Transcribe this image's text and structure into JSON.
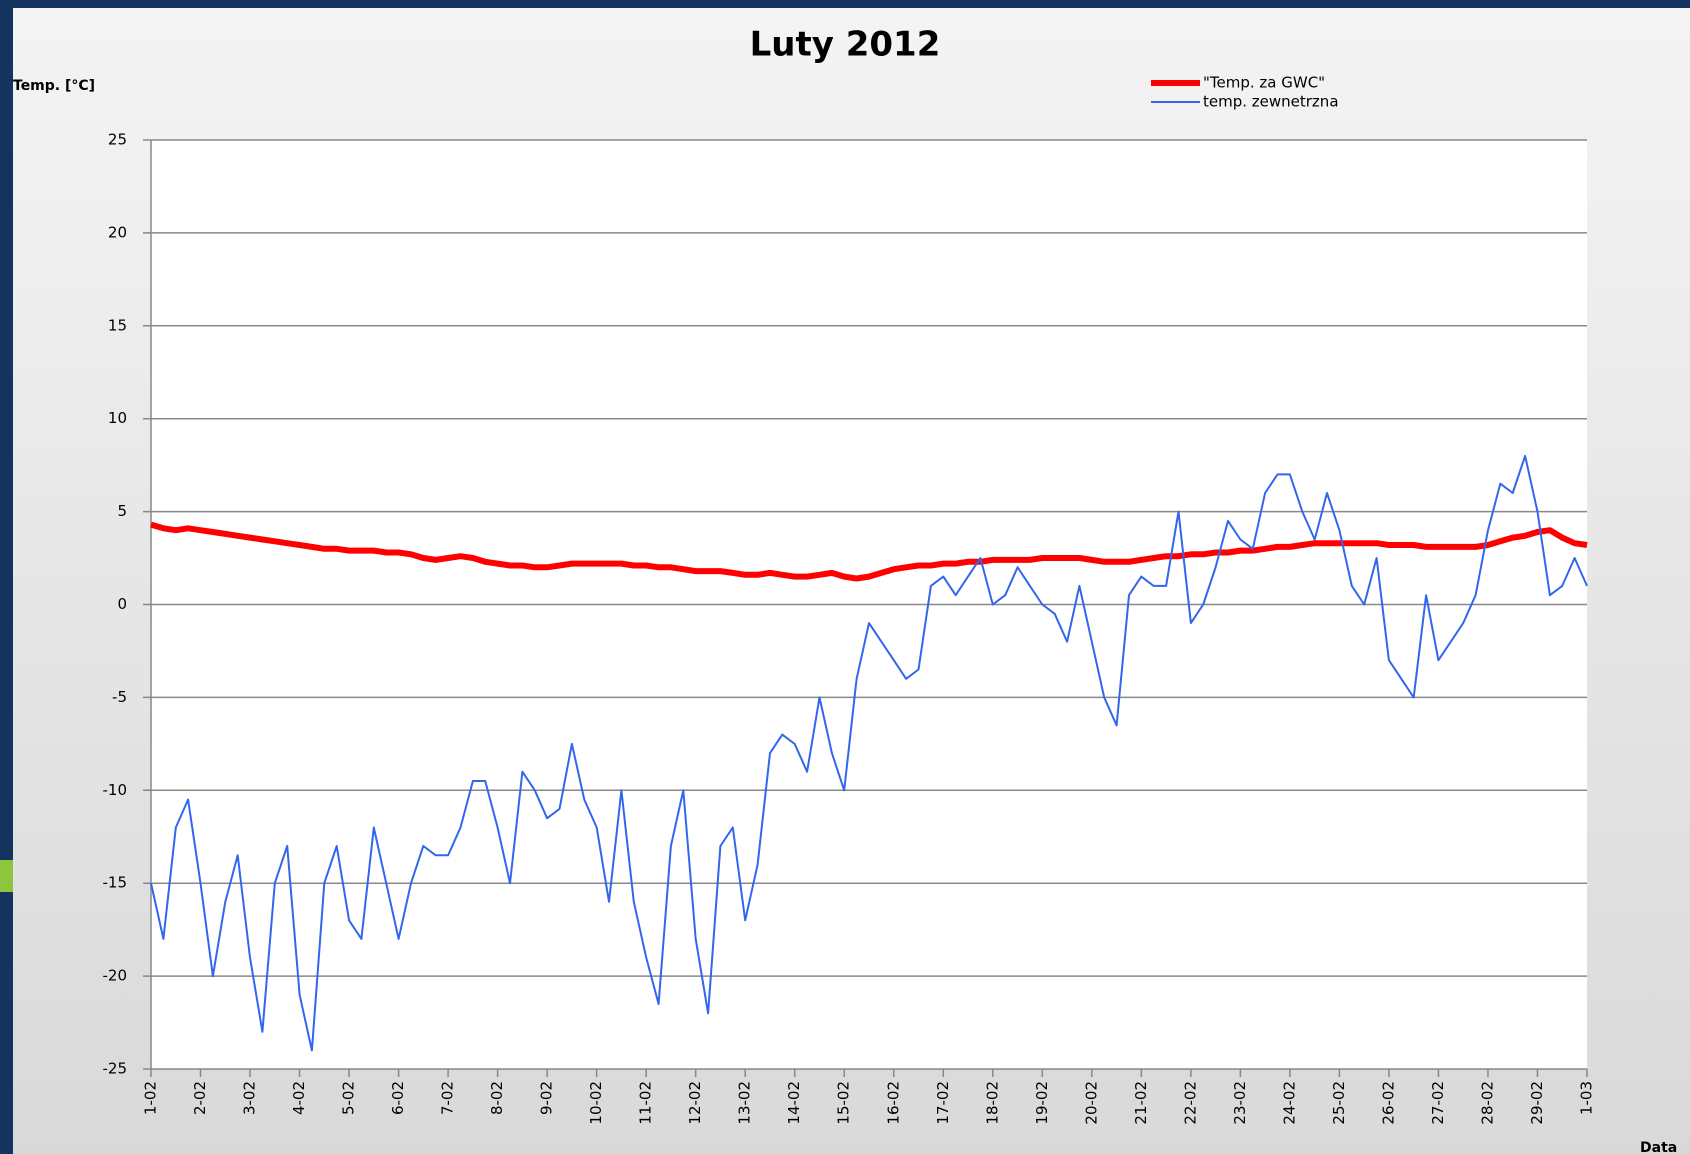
{
  "chart_data": {
    "type": "line",
    "title": "Luty 2012",
    "y_label": "Temp. [°C]",
    "x_label": "Data",
    "categories": [
      "1-02",
      null,
      null,
      null,
      "2-02",
      null,
      null,
      null,
      "3-02",
      null,
      null,
      null,
      "4-02",
      null,
      null,
      null,
      "5-02",
      null,
      null,
      null,
      "6-02",
      null,
      null,
      null,
      "7-02",
      null,
      null,
      null,
      "8-02",
      null,
      null,
      null,
      "9-02",
      null,
      null,
      null,
      "10-02",
      null,
      null,
      null,
      "11-02",
      null,
      null,
      null,
      "12-02",
      null,
      null,
      null,
      "13-02",
      null,
      null,
      null,
      "14-02",
      null,
      null,
      null,
      "15-02",
      null,
      null,
      null,
      "16-02",
      null,
      null,
      null,
      "17-02",
      null,
      null,
      null,
      "18-02",
      null,
      null,
      null,
      "19-02",
      null,
      null,
      null,
      "20-02",
      null,
      null,
      null,
      "21-02",
      null,
      null,
      null,
      "22-02",
      null,
      null,
      null,
      "23-02",
      null,
      null,
      null,
      "24-02",
      null,
      null,
      null,
      "25-02",
      null,
      null,
      null,
      "26-02",
      null,
      null,
      null,
      "27-02",
      null,
      null,
      null,
      "28-02",
      null,
      null,
      null,
      "29-02",
      null,
      null,
      null,
      "1-03"
    ],
    "series": [
      {
        "name": "\"Temp. za GWC\"",
        "color": "#ff0000",
        "width": 6,
        "values": [
          4.3,
          4.1,
          4.0,
          4.1,
          4.0,
          3.9,
          3.8,
          3.7,
          3.6,
          3.5,
          3.4,
          3.3,
          3.2,
          3.1,
          3.0,
          3.0,
          2.9,
          2.9,
          2.9,
          2.8,
          2.8,
          2.7,
          2.5,
          2.4,
          2.5,
          2.6,
          2.5,
          2.3,
          2.2,
          2.1,
          2.1,
          2.0,
          2.0,
          2.1,
          2.2,
          2.2,
          2.2,
          2.2,
          2.2,
          2.1,
          2.1,
          2.0,
          2.0,
          1.9,
          1.8,
          1.8,
          1.8,
          1.7,
          1.6,
          1.6,
          1.7,
          1.6,
          1.5,
          1.5,
          1.6,
          1.7,
          1.5,
          1.4,
          1.5,
          1.7,
          1.9,
          2.0,
          2.1,
          2.1,
          2.2,
          2.2,
          2.3,
          2.3,
          2.4,
          2.4,
          2.4,
          2.4,
          2.5,
          2.5,
          2.5,
          2.5,
          2.4,
          2.3,
          2.3,
          2.3,
          2.4,
          2.5,
          2.6,
          2.6,
          2.7,
          2.7,
          2.8,
          2.8,
          2.9,
          2.9,
          3.0,
          3.1,
          3.1,
          3.2,
          3.3,
          3.3,
          3.3,
          3.3,
          3.3,
          3.3,
          3.2,
          3.2,
          3.2,
          3.1,
          3.1,
          3.1,
          3.1,
          3.1,
          3.2,
          3.4,
          3.6,
          3.7,
          3.9,
          4.0,
          3.6,
          3.3,
          3.2
        ]
      },
      {
        "name": "temp. zewnetrzna",
        "color": "#3366ee",
        "width": 2,
        "values": [
          -15,
          -18,
          -12,
          -10.5,
          -15,
          -20,
          -16,
          -13.5,
          -19,
          -23,
          -15,
          -13,
          -21,
          -24,
          -15,
          -13,
          -17,
          -18,
          -12,
          -15,
          -18,
          -15,
          -13,
          -13.5,
          -13.5,
          -12,
          -9.5,
          -9.5,
          -12,
          -15,
          -9,
          -10,
          -11.5,
          -11,
          -7.5,
          -10.5,
          -12,
          -16,
          -10,
          -16,
          -19,
          -21.5,
          -13,
          -10,
          -18,
          -22,
          -13,
          -12,
          -17,
          -14,
          -8,
          -7,
          -7.5,
          -9,
          -5,
          -8,
          -10,
          -4,
          -1,
          -2,
          -3,
          -4,
          -3.5,
          1,
          1.5,
          0.5,
          1.5,
          2.5,
          0,
          0.5,
          2,
          1,
          0,
          -0.5,
          -2,
          1,
          -2,
          -5,
          -6.5,
          0.5,
          1.5,
          1,
          1,
          5,
          -1,
          0,
          2,
          4.5,
          3.5,
          3,
          6,
          7,
          7,
          5,
          3.5,
          6,
          4,
          1,
          0,
          2.5,
          -3,
          -4,
          -5,
          0.5,
          -3,
          -2,
          -1,
          0.5,
          4,
          6.5,
          6,
          8,
          5,
          0.5,
          1,
          2.5,
          1
        ]
      }
    ],
    "ylim": [
      -25,
      25
    ],
    "yticks": [
      25,
      20,
      15,
      10,
      5,
      0,
      -5,
      -10,
      -15,
      -20,
      -25
    ],
    "grid": true
  }
}
